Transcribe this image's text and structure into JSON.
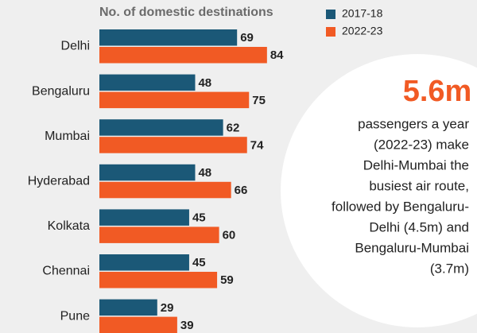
{
  "chart_data": {
    "type": "bar",
    "orientation": "horizontal",
    "title": "No. of domestic destinations",
    "categories": [
      "Delhi",
      "Bengaluru",
      "Mumbai",
      "Hyderabad",
      "Kolkata",
      "Chennai",
      "Pune"
    ],
    "series": [
      {
        "name": "2017-18",
        "color": "#1b5877",
        "values": [
          69,
          48,
          62,
          48,
          45,
          45,
          29
        ]
      },
      {
        "name": "2022-23",
        "color": "#f15a24",
        "values": [
          84,
          75,
          74,
          66,
          60,
          59,
          39
        ]
      }
    ],
    "annotation": {
      "highlight": "5.6m",
      "highlight_color": "#f15a24",
      "lines": [
        "passengers a year",
        "(2022-23) make",
        "Delhi-Mumbai the",
        "busiest air route,",
        "followed by Bengaluru-",
        "Delhi (4.5m) and",
        "Bengaluru-Mumbai",
        "(3.7m)"
      ]
    }
  }
}
